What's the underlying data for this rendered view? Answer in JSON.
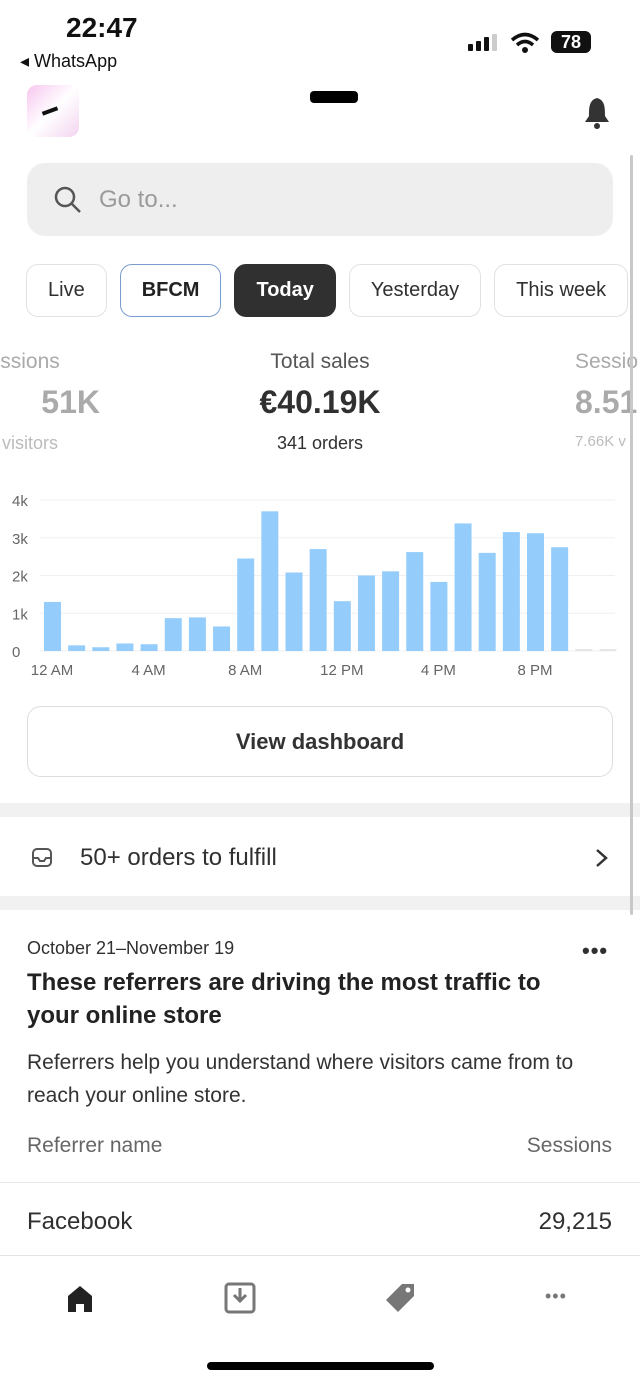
{
  "status": {
    "time": "22:47",
    "back": "WhatsApp",
    "battery": "78"
  },
  "search": {
    "placeholder": "Go to..."
  },
  "chips": [
    {
      "label": "Live"
    },
    {
      "label": "BFCM"
    },
    {
      "label": "Today"
    },
    {
      "label": "Yesterday"
    },
    {
      "label": "This week"
    }
  ],
  "metrics": {
    "left": {
      "label": "ssions",
      "value": "51K",
      "sub": "visitors"
    },
    "center": {
      "label": "Total sales",
      "value": "€40.19K",
      "sub": "341 orders"
    },
    "right": {
      "label": "Sessio",
      "value": "8.51",
      "sub": "7.66K v"
    }
  },
  "chart_data": {
    "type": "bar",
    "ylim": [
      0,
      4000
    ],
    "yticks": [
      "0",
      "1k",
      "2k",
      "3k",
      "4k"
    ],
    "xticks": [
      "12 AM",
      "4 AM",
      "8 AM",
      "12 PM",
      "4 PM",
      "8 PM"
    ],
    "categories": [
      "0",
      "1",
      "2",
      "3",
      "4",
      "5",
      "6",
      "7",
      "8",
      "9",
      "10",
      "11",
      "12",
      "13",
      "14",
      "15",
      "16",
      "17",
      "18",
      "19",
      "20",
      "21",
      "22",
      "23"
    ],
    "values": [
      1300,
      150,
      100,
      200,
      180,
      870,
      890,
      650,
      2450,
      3700,
      2080,
      2700,
      1320,
      2000,
      2110,
      2620,
      1830,
      3380,
      2600,
      3150,
      3120,
      2750,
      null,
      null
    ],
    "color": "#94cdfb",
    "future_color": "#e6e6e6",
    "grid": true
  },
  "dashboard_button": "View dashboard",
  "fulfill": {
    "text": "50+ orders to fulfill"
  },
  "card": {
    "date": "October 21–November 19",
    "title": "These referrers are driving the most traffic to your online store",
    "desc": "Referrers help you understand where visitors came from to reach your online store.",
    "col1": "Referrer name",
    "col2": "Sessions",
    "rows": [
      {
        "name": "Facebook",
        "sessions": "29,215"
      }
    ]
  },
  "nav": [
    "home-icon",
    "orders-icon",
    "tag-icon",
    "more-icon"
  ]
}
